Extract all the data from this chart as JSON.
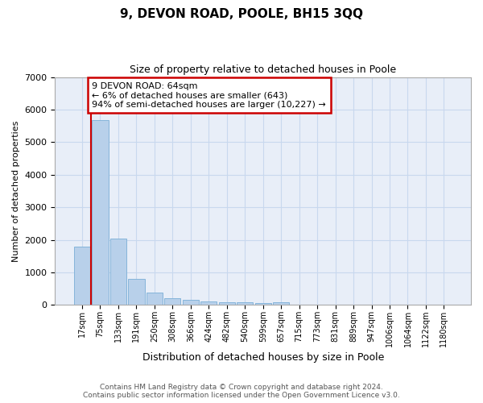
{
  "title": "9, DEVON ROAD, POOLE, BH15 3QQ",
  "subtitle": "Size of property relative to detached houses in Poole",
  "xlabel": "Distribution of detached houses by size in Poole",
  "ylabel": "Number of detached properties",
  "categories": [
    "17sqm",
    "75sqm",
    "133sqm",
    "191sqm",
    "250sqm",
    "308sqm",
    "366sqm",
    "424sqm",
    "482sqm",
    "540sqm",
    "599sqm",
    "657sqm",
    "715sqm",
    "773sqm",
    "831sqm",
    "889sqm",
    "947sqm",
    "1006sqm",
    "1064sqm",
    "1122sqm",
    "1180sqm"
  ],
  "values": [
    1780,
    5670,
    2040,
    800,
    370,
    210,
    150,
    100,
    70,
    70,
    55,
    75,
    0,
    0,
    0,
    0,
    0,
    0,
    0,
    0,
    0
  ],
  "bar_color": "#b8d0ea",
  "bar_edge_color": "#7aaed6",
  "annotation_box_edge_color": "#cc0000",
  "vline_color": "#cc0000",
  "ylim": [
    0,
    7000
  ],
  "yticks": [
    0,
    1000,
    2000,
    3000,
    4000,
    5000,
    6000,
    7000
  ],
  "grid_color": "#c8d8ee",
  "bg_color": "#e8eef8",
  "property_label": "9 DEVON ROAD: 64sqm",
  "annotation_line1": "← 6% of detached houses are smaller (643)",
  "annotation_line2": "94% of semi-detached houses are larger (10,227) →",
  "footer_line1": "Contains HM Land Registry data © Crown copyright and database right 2024.",
  "footer_line2": "Contains public sector information licensed under the Open Government Licence v3.0.",
  "title_fontsize": 11,
  "subtitle_fontsize": 9,
  "xlabel_fontsize": 9,
  "ylabel_fontsize": 8,
  "tick_fontsize": 8,
  "xtick_fontsize": 7,
  "annotation_fontsize": 8,
  "footer_fontsize": 6.5
}
